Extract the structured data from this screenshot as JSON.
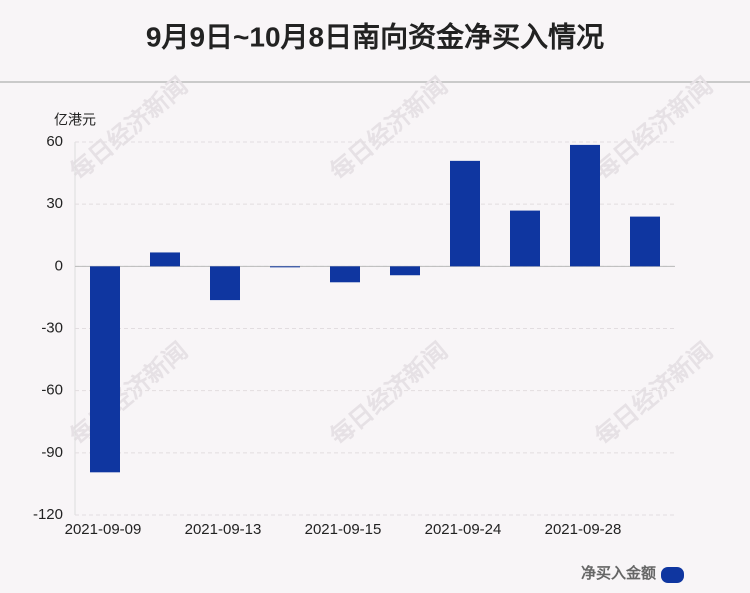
{
  "chart_data": {
    "type": "bar",
    "title": "9月9日~10月8日南向资金净买入情况",
    "y_label": "亿港元",
    "watermark": "每日经济新闻",
    "categories": [
      "2021-09-09",
      null,
      "2021-09-13",
      null,
      "2021-09-15",
      null,
      "2021-09-24",
      null,
      "2021-09-28",
      null
    ],
    "series": [
      {
        "name": "净买入金额",
        "color": "#0f36a0",
        "values": [
          -99.4,
          6.7,
          -16.3,
          -0.3,
          -7.7,
          -4.3,
          50.9,
          26.9,
          58.6,
          24.0
        ]
      }
    ],
    "ylim": [
      -120,
      60
    ],
    "yticks": [
      -120,
      -90,
      -60,
      -30,
      0,
      30,
      60
    ],
    "grid": true,
    "legend": "bottom-right"
  }
}
